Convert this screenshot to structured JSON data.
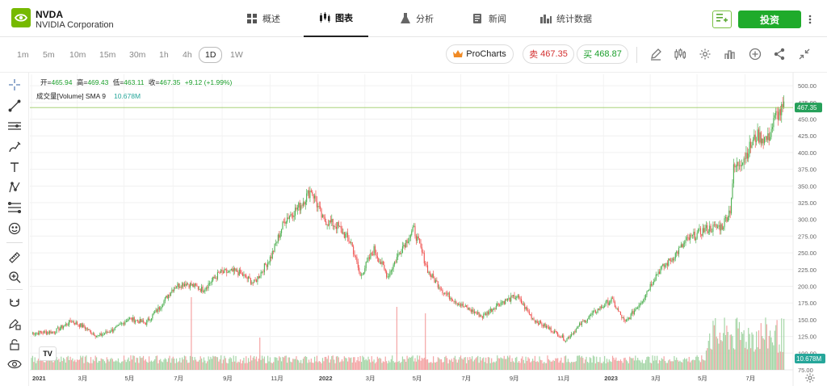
{
  "header": {
    "ticker": "NVDA",
    "company": "NVIDIA Corporation",
    "tabs": [
      {
        "label": "概述",
        "icon": "overview-grid-icon",
        "active": false
      },
      {
        "label": "图表",
        "icon": "candlestick-icon",
        "active": true
      },
      {
        "label": "分析",
        "icon": "flask-icon",
        "active": false
      },
      {
        "label": "新闻",
        "icon": "news-icon",
        "active": false
      },
      {
        "label": "统计数据",
        "icon": "bar-stats-icon",
        "active": false
      }
    ],
    "invest_label": "投资",
    "colors": {
      "brand": "#76b900",
      "invest": "#1fab2b"
    }
  },
  "toolbar": {
    "timeframes": [
      "1m",
      "5m",
      "10m",
      "15m",
      "30m",
      "1h",
      "4h",
      "1D",
      "1W"
    ],
    "active_timeframe": "1D",
    "procharts_label": "ProCharts",
    "sell_label": "卖",
    "sell_price": "467.35",
    "buy_label": "买",
    "buy_price": "468.87"
  },
  "legend": {
    "open_label": "开=",
    "open": "465.94",
    "high_label": "高=",
    "high": "469.43",
    "low_label": "低=",
    "low": "463.11",
    "close_label": "收=",
    "close": "467.35",
    "change": "+9.12 (+1.99%)",
    "volume_label": "成交量[Volume] SMA 9",
    "volume_value": "10.678M"
  },
  "watermark_logo": "TV",
  "chart_data": {
    "type": "candlestick",
    "price_axis": {
      "ticks": [
        75,
        100,
        125,
        150,
        175,
        200,
        225,
        250,
        275,
        300,
        325,
        350,
        375,
        400,
        425,
        450,
        475,
        500
      ],
      "ylim": [
        75,
        505
      ],
      "tick_labels": [
        "75.00",
        "100.00",
        "125.00",
        "150.00",
        "175.00",
        "200.00",
        "225.00",
        "250.00",
        "275.00",
        "300.00",
        "325.00",
        "350.00",
        "375.00",
        "400.00",
        "425.00",
        "450.00",
        "475.00",
        "500.00"
      ]
    },
    "last_price_label": "467.35",
    "last_price": 467.35,
    "volume_label": "10.678M",
    "x_axis_labels": [
      "2021",
      "3月",
      "5月",
      "7月",
      "9月",
      "11月",
      "2022",
      "3月",
      "5月",
      "7月",
      "9月",
      "11月",
      "2023",
      "3月",
      "5月",
      "7月"
    ],
    "x_axis_label_index": [
      0,
      40,
      81,
      124,
      167,
      209,
      251,
      292,
      333,
      376,
      418,
      460,
      501,
      542,
      583,
      625
    ],
    "bars_count": 660,
    "anchors": [
      [
        0,
        130
      ],
      [
        20,
        132
      ],
      [
        35,
        148
      ],
      [
        45,
        140
      ],
      [
        58,
        125
      ],
      [
        75,
        138
      ],
      [
        85,
        152
      ],
      [
        100,
        145
      ],
      [
        112,
        168
      ],
      [
        125,
        200
      ],
      [
        135,
        205
      ],
      [
        150,
        195
      ],
      [
        165,
        220
      ],
      [
        180,
        222
      ],
      [
        195,
        205
      ],
      [
        210,
        245
      ],
      [
        222,
        300
      ],
      [
        235,
        320
      ],
      [
        245,
        345
      ],
      [
        255,
        300
      ],
      [
        268,
        290
      ],
      [
        280,
        265
      ],
      [
        288,
        215
      ],
      [
        300,
        255
      ],
      [
        312,
        215
      ],
      [
        325,
        260
      ],
      [
        335,
        285
      ],
      [
        348,
        220
      ],
      [
        362,
        190
      ],
      [
        378,
        170
      ],
      [
        395,
        155
      ],
      [
        410,
        175
      ],
      [
        425,
        185
      ],
      [
        440,
        150
      ],
      [
        455,
        135
      ],
      [
        468,
        120
      ],
      [
        482,
        145
      ],
      [
        496,
        165
      ],
      [
        508,
        180
      ],
      [
        520,
        145
      ],
      [
        535,
        180
      ],
      [
        548,
        220
      ],
      [
        560,
        240
      ],
      [
        575,
        270
      ],
      [
        590,
        285
      ],
      [
        605,
        290
      ],
      [
        612,
        315
      ],
      [
        615,
        375
      ],
      [
        625,
        395
      ],
      [
        635,
        425
      ],
      [
        645,
        420
      ],
      [
        652,
        455
      ],
      [
        660,
        467
      ]
    ],
    "volume_spikes": [
      [
        140,
        90
      ],
      [
        200,
        40
      ],
      [
        320,
        78
      ],
      [
        345,
        70
      ]
    ],
    "colors": {
      "up": "#4caf50",
      "down": "#ef5350",
      "vol_up": "#a5d6a7",
      "vol_down": "#f4a4a4",
      "last_line": "#9ccc65",
      "last_label_bg": "#26a05a",
      "volume_label_bg": "#26a69a"
    }
  }
}
